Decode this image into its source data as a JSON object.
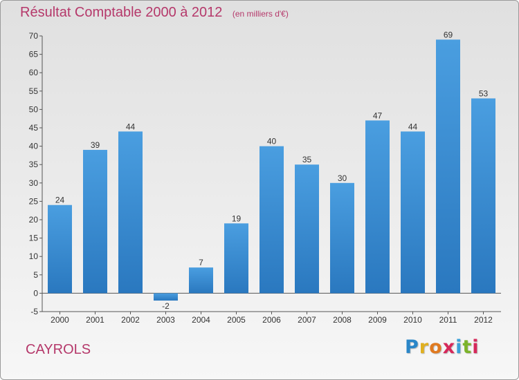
{
  "chart_data": {
    "type": "bar",
    "title": "Résultat Comptable 2000 à 2012",
    "subtitle": "(en milliers d'€)",
    "categories": [
      "2000",
      "2001",
      "2002",
      "2003",
      "2004",
      "2005",
      "2006",
      "2007",
      "2008",
      "2009",
      "2010",
      "2011",
      "2012"
    ],
    "values": [
      24,
      39,
      44,
      -2,
      7,
      19,
      40,
      35,
      30,
      47,
      44,
      69,
      53
    ],
    "value_labels": [
      "24",
      "39",
      "44",
      "-2",
      "7",
      "19",
      "40",
      "35",
      "30",
      "47",
      "44",
      "69",
      "53"
    ],
    "ylim": [
      -5,
      70
    ],
    "yticks": [
      -5,
      0,
      5,
      10,
      15,
      20,
      25,
      30,
      35,
      40,
      45,
      50,
      55,
      60,
      65,
      70
    ],
    "xlabel": "",
    "ylabel": "",
    "grid": false,
    "bar_color": "#4a9ee0",
    "bar_color_dark": "#2a78bf"
  },
  "commune": "CAYROLS",
  "logo": {
    "letters": [
      "P",
      "r",
      "o",
      "x",
      "i",
      "t",
      "i"
    ],
    "colors": [
      "#2a86c8",
      "#e0b020",
      "#e07a20",
      "#d6285a",
      "#3aa0d8",
      "#7cb32a",
      "#d6285a"
    ]
  },
  "title_color": "#b5386a"
}
